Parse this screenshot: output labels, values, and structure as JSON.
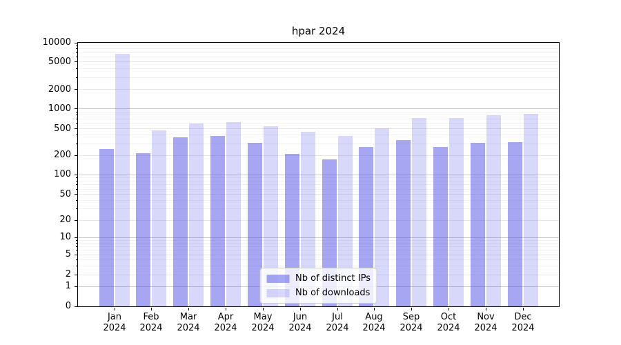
{
  "chart_data": {
    "type": "bar",
    "title": "hpar 2024",
    "categories": [
      "Jan 2024",
      "Feb 2024",
      "Mar 2024",
      "Apr 2024",
      "May 2024",
      "Jun 2024",
      "Jul 2024",
      "Aug 2024",
      "Sep 2024",
      "Oct 2024",
      "Nov 2024",
      "Dec 2024"
    ],
    "series": [
      {
        "name": "Nb of distinct IPs",
        "color": "#4d4de6",
        "alpha": 0.5,
        "on_white_color": "#a6a6f2",
        "values": [
          250,
          218,
          375,
          395,
          305,
          212,
          176,
          265,
          340,
          267,
          312,
          315
        ]
      },
      {
        "name": "Nb of downloads",
        "color": "#4d4de6",
        "alpha": 0.22,
        "on_white_color": "#d8d8f9",
        "values": [
          6800,
          470,
          600,
          630,
          550,
          455,
          393,
          510,
          720,
          725,
          790,
          845
        ]
      }
    ],
    "y_ticks": [
      0,
      1,
      2,
      5,
      10,
      20,
      50,
      100,
      200,
      500,
      1000,
      2000,
      5000,
      10000
    ],
    "ylim": [
      0,
      10000
    ],
    "y_scale": "symlog",
    "grid": true,
    "legend_position": "lower center"
  },
  "colors": {
    "grid_major": "#c9c9c9",
    "grid_minor": "#f1f1f1",
    "axis": "#000000",
    "background": "#ffffff",
    "legend_border": "#cccccc"
  }
}
